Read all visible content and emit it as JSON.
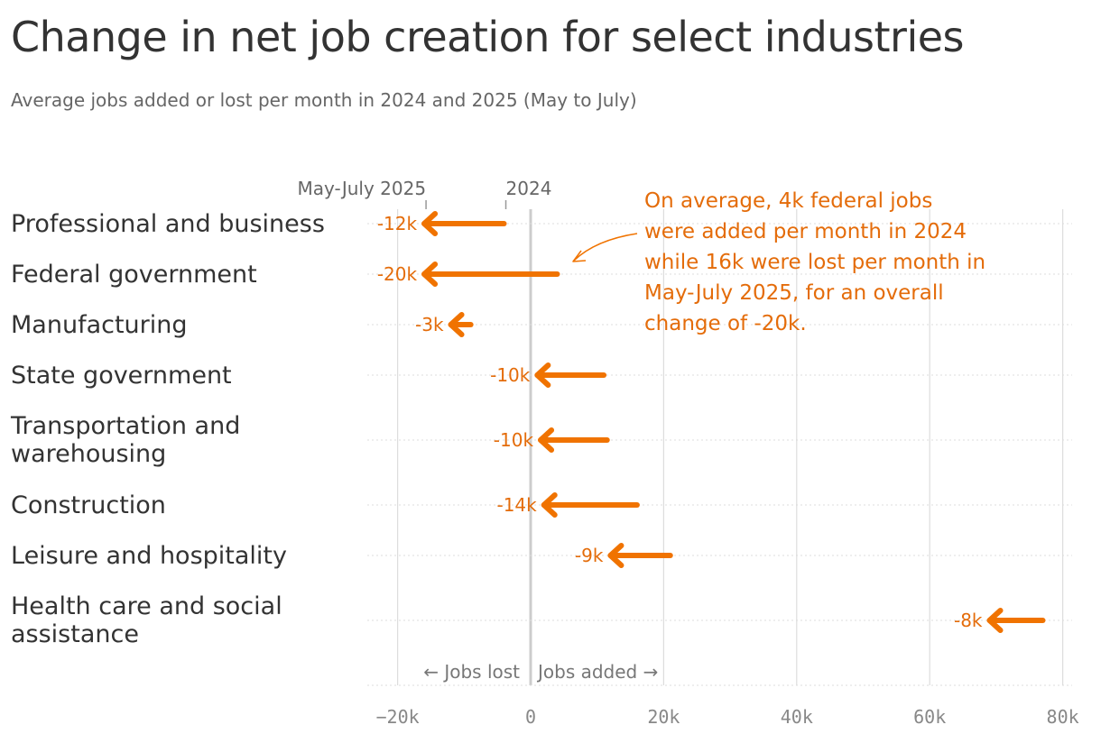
{
  "title": "Change in net job creation for select industries",
  "subtitle": "Average jobs added or lost per month in 2024 and 2025 (May to July)",
  "annotation": "On average, 4k federal jobs were added per month in 2024 while 16k were lost per month in May-July 2025, for an overall change of -20k.",
  "colors": {
    "arrow": "#F07300",
    "label": "#E46C0A",
    "grid": "#dddddd",
    "zero": "#cccccc"
  },
  "chart_data": {
    "type": "arrow",
    "xlim": [
      -24,
      80
    ],
    "x_ticks": [
      -20,
      0,
      20,
      40,
      60,
      80
    ],
    "x_tick_labels": [
      "−20k",
      "0",
      "20k",
      "40k",
      "60k",
      "80k"
    ],
    "key_labels": {
      "from": "2024",
      "to": "May-July 2025"
    },
    "direction_labels": {
      "left": "← Jobs lost",
      "right": "Jobs added →"
    },
    "rows": [
      {
        "category": [
          "Professional and business"
        ],
        "from": -4,
        "to": -16,
        "label": "-12k"
      },
      {
        "category": [
          "Federal government"
        ],
        "from": 4,
        "to": -16,
        "label": "-20k"
      },
      {
        "category": [
          "Manufacturing"
        ],
        "from": -9,
        "to": -12,
        "label": "-3k"
      },
      {
        "category": [
          "State government"
        ],
        "from": 11,
        "to": 1,
        "label": "-10k"
      },
      {
        "category": [
          "Transportation and",
          "warehousing"
        ],
        "from": 11.5,
        "to": 1.5,
        "label": "-10k"
      },
      {
        "category": [
          "Construction"
        ],
        "from": 16,
        "to": 2,
        "label": "-14k"
      },
      {
        "category": [
          "Leisure and hospitality"
        ],
        "from": 21,
        "to": 12,
        "label": "-9k"
      },
      {
        "category": [
          "Health care and social",
          "assistance"
        ],
        "from": 77,
        "to": 69,
        "label": "-8k"
      }
    ]
  }
}
